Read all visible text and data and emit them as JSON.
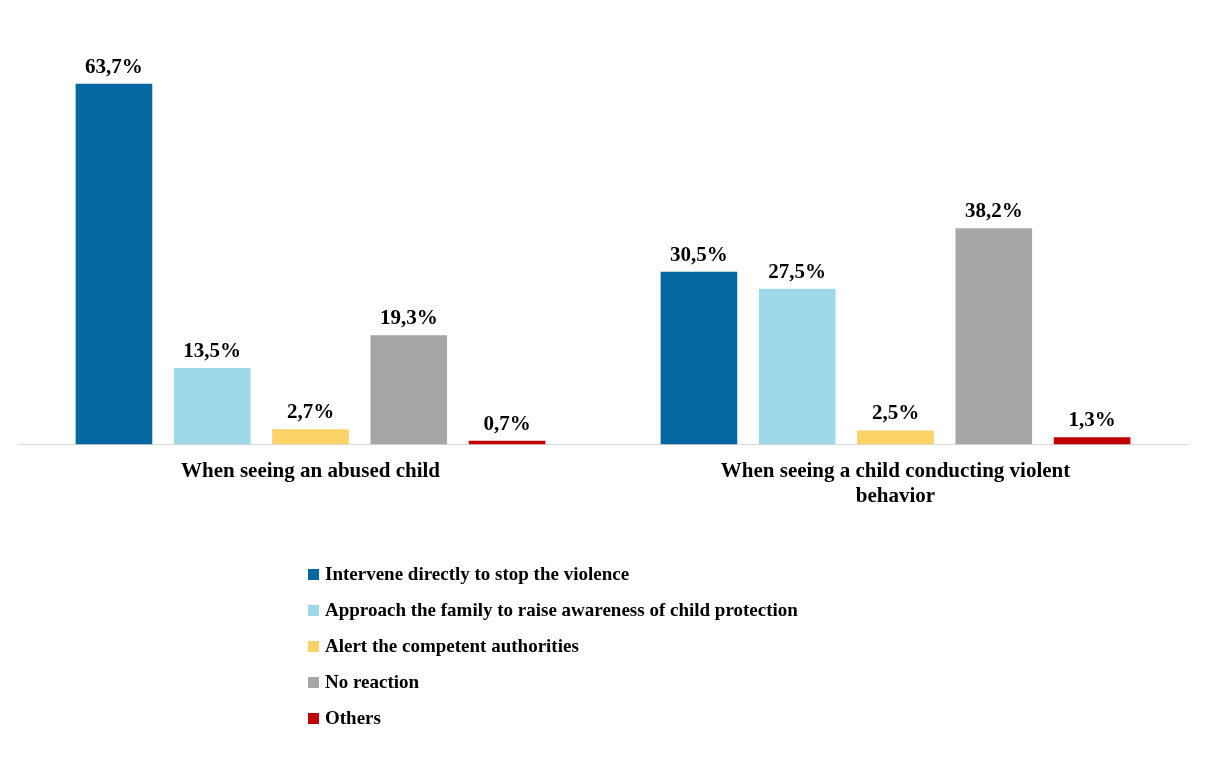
{
  "chart_data": {
    "type": "bar",
    "categories": [
      "When seeing an abused child",
      "When seeing a child conducting violent behavior"
    ],
    "series": [
      {
        "name": "Intervene directly to stop the violence",
        "color": "#0568a0",
        "values": [
          63.7,
          30.5
        ],
        "value_labels": [
          "63,7%",
          "30,5%"
        ]
      },
      {
        "name": "Approach the family to raise awareness of child protection",
        "color": "#9dd9e8",
        "values": [
          13.5,
          27.5
        ],
        "value_labels": [
          "13,5%",
          "27,5%"
        ]
      },
      {
        "name": "Alert the competent authorities",
        "color": "#fdd268",
        "values": [
          2.7,
          2.5
        ],
        "value_labels": [
          "2,7%",
          "2,5%"
        ]
      },
      {
        "name": "No reaction",
        "color": "#a6a6a6",
        "values": [
          19.3,
          38.2
        ],
        "value_labels": [
          "19,3%",
          "38,2%"
        ]
      },
      {
        "name": "Others",
        "color": "#c00000",
        "values": [
          0.7,
          1.3
        ],
        "value_labels": [
          "0,7%",
          "1,3%"
        ]
      }
    ],
    "legend": "bottom",
    "grid": false
  }
}
